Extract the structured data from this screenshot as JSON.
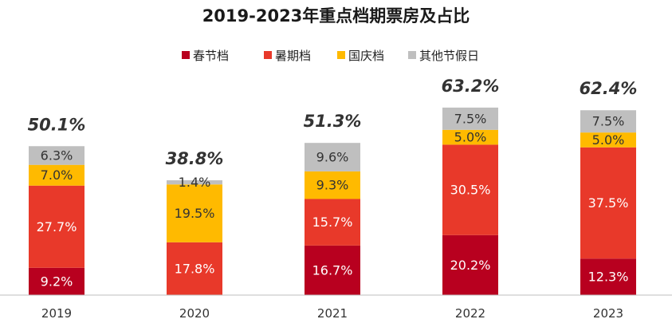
{
  "chart_data": {
    "type": "bar",
    "stacked": true,
    "title": "2019-2023年重点档期票房及占比",
    "xlabel": "",
    "ylabel": "",
    "ylim": [
      0,
      70
    ],
    "grid": false,
    "legend_position": "top-center",
    "categories": [
      "2019",
      "2020",
      "2021",
      "2022",
      "2023"
    ],
    "series": [
      {
        "name": "春节档",
        "color": "#b8001f",
        "values": [
          9.2,
          0,
          16.7,
          20.2,
          12.3
        ],
        "labels": [
          "9.2%",
          "",
          "16.7%",
          "20.2%",
          "12.3%"
        ]
      },
      {
        "name": "暑期档",
        "color": "#e8392a",
        "values": [
          27.7,
          17.8,
          15.7,
          30.5,
          37.5
        ],
        "labels": [
          "27.7%",
          "17.8%",
          "15.7%",
          "30.5%",
          "37.5%"
        ]
      },
      {
        "name": "国庆档",
        "color": "#ffba00",
        "values": [
          7.0,
          19.5,
          9.3,
          5.0,
          5.0
        ],
        "labels": [
          "7.0%",
          "19.5%",
          "9.3%",
          "5.0%",
          "5.0%"
        ]
      },
      {
        "name": "其他节假日",
        "color": "#bfbfbf",
        "values": [
          6.3,
          1.4,
          9.6,
          7.5,
          7.5
        ],
        "labels": [
          "6.3%",
          "1.4%",
          "9.6%",
          "7.5%",
          "7.5%"
        ]
      }
    ],
    "totals": [
      "50.1%",
      "38.8%",
      "51.3%",
      "63.2%",
      "62.4%"
    ]
  }
}
